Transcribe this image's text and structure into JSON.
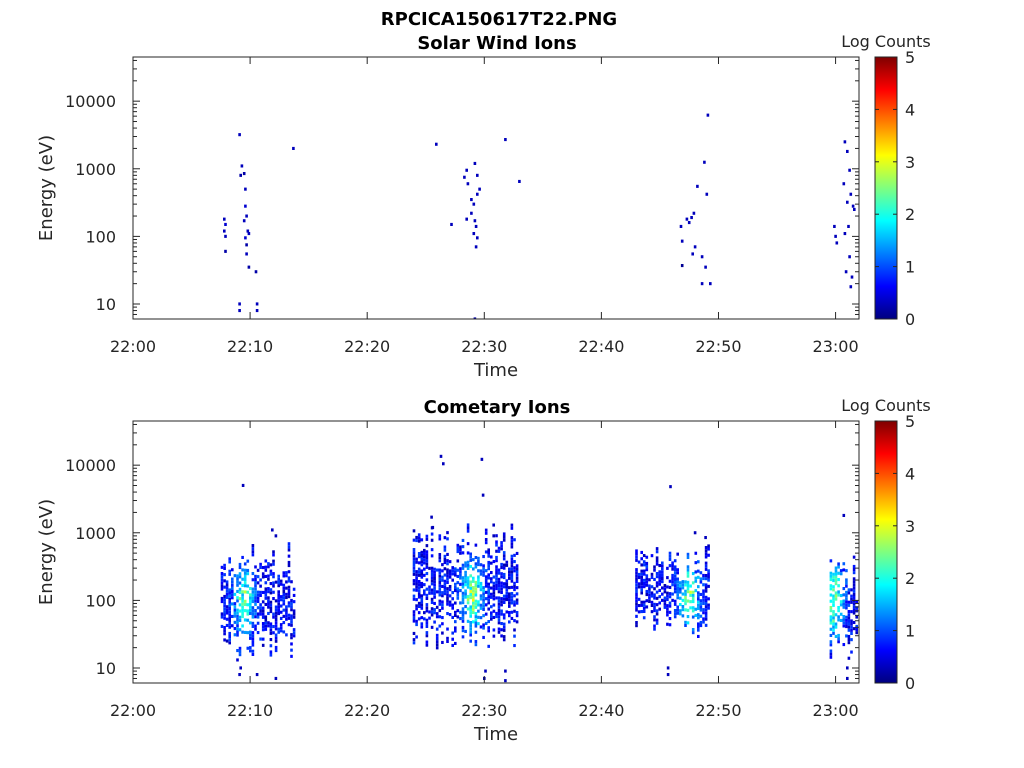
{
  "figure": {
    "title": "RPCICA150617T22.PNG"
  },
  "colors": {
    "scale": [
      "#00007f",
      "#0000ff",
      "#007fff",
      "#00ffff",
      "#7fff7f",
      "#ffff00",
      "#ff7f00",
      "#ff0000",
      "#7f0000"
    ],
    "axis": "#262626"
  },
  "chart_data": [
    {
      "type": "heatmap",
      "title": "Solar Wind Ions",
      "xlabel": "Time",
      "ylabel": "Energy (eV)",
      "yscale": "log",
      "xlim": [
        "22:00",
        "23:02"
      ],
      "ylim": [
        6,
        45000
      ],
      "xticks": [
        "22:00",
        "22:10",
        "22:20",
        "22:30",
        "22:40",
        "22:50",
        "23:00"
      ],
      "yticks": [
        "10",
        "100",
        "1000",
        "10000"
      ],
      "colorbar": {
        "label": "Log Counts",
        "min": 0,
        "max": 5,
        "ticks": [
          "0",
          "1",
          "2",
          "3",
          "4",
          "5"
        ]
      },
      "points": [
        [
          7.8,
          180,
          0.3
        ],
        [
          7.9,
          150,
          0.4
        ],
        [
          7.8,
          120,
          0.3
        ],
        [
          7.9,
          100,
          0.3
        ],
        [
          7.9,
          60,
          0.2
        ],
        [
          9.1,
          3200,
          0.3
        ],
        [
          9.3,
          1100,
          0.3
        ],
        [
          9.2,
          800,
          0.2
        ],
        [
          9.5,
          850,
          0.2
        ],
        [
          9.6,
          500,
          0.3
        ],
        [
          9.6,
          280,
          0.4
        ],
        [
          9.7,
          200,
          0.3
        ],
        [
          9.5,
          170,
          0.3
        ],
        [
          9.8,
          120,
          0.3
        ],
        [
          9.6,
          95,
          0.4
        ],
        [
          9.9,
          110,
          0.3
        ],
        [
          9.7,
          75,
          0.2
        ],
        [
          9.7,
          55,
          0.3
        ],
        [
          9.9,
          35,
          0.2
        ],
        [
          10.5,
          30,
          0.2
        ],
        [
          9.1,
          10,
          0.3
        ],
        [
          9.1,
          8,
          0.3
        ],
        [
          10.6,
          10,
          0.3
        ],
        [
          10.6,
          8,
          0.3
        ],
        [
          13.7,
          2000,
          0.3
        ],
        [
          25.9,
          2300,
          0.3
        ],
        [
          28.5,
          950,
          0.3
        ],
        [
          28.3,
          750,
          0.3
        ],
        [
          28.6,
          600,
          0.3
        ],
        [
          29.2,
          1200,
          0.3
        ],
        [
          29.4,
          800,
          0.3
        ],
        [
          29.6,
          500,
          0.3
        ],
        [
          29.4,
          420,
          0.3
        ],
        [
          28.9,
          350,
          0.3
        ],
        [
          29.1,
          300,
          0.3
        ],
        [
          28.5,
          180,
          0.3
        ],
        [
          28.9,
          220,
          0.3
        ],
        [
          29.2,
          170,
          0.3
        ],
        [
          29.3,
          140,
          0.3
        ],
        [
          27.2,
          150,
          0.3
        ],
        [
          29.4,
          95,
          0.3
        ],
        [
          29.3,
          70,
          0.3
        ],
        [
          29.1,
          110,
          0.3
        ],
        [
          31.8,
          2700,
          0.3
        ],
        [
          33.0,
          650,
          0.3
        ],
        [
          29.2,
          6,
          0.2
        ],
        [
          49.1,
          6200,
          0.3
        ],
        [
          48.8,
          1250,
          0.3
        ],
        [
          48.2,
          550,
          0.3
        ],
        [
          49.0,
          420,
          0.3
        ],
        [
          47.9,
          220,
          0.3
        ],
        [
          47.7,
          190,
          0.3
        ],
        [
          47.5,
          160,
          0.3
        ],
        [
          47.3,
          180,
          0.3
        ],
        [
          46.8,
          140,
          0.3
        ],
        [
          46.9,
          85,
          0.3
        ],
        [
          48.0,
          70,
          0.3
        ],
        [
          47.8,
          55,
          0.3
        ],
        [
          48.6,
          50,
          0.3
        ],
        [
          48.9,
          35,
          0.3
        ],
        [
          48.6,
          20,
          0.3
        ],
        [
          49.3,
          20,
          0.3
        ],
        [
          46.9,
          37,
          0.1
        ],
        [
          59.9,
          140,
          0.3
        ],
        [
          60.0,
          100,
          0.3
        ],
        [
          60.1,
          80,
          0.3
        ],
        [
          60.8,
          2500,
          0.3
        ],
        [
          61.0,
          1800,
          0.3
        ],
        [
          61.2,
          950,
          0.3
        ],
        [
          60.7,
          600,
          0.3
        ],
        [
          61.3,
          420,
          0.3
        ],
        [
          61.0,
          320,
          0.3
        ],
        [
          61.5,
          280,
          0.3
        ],
        [
          61.6,
          250,
          0.3
        ],
        [
          61.1,
          140,
          0.3
        ],
        [
          60.8,
          110,
          0.3
        ],
        [
          61.2,
          50,
          0.3
        ],
        [
          60.9,
          30,
          0.3
        ],
        [
          61.4,
          25,
          0.3
        ],
        [
          61.3,
          18,
          0.3
        ]
      ]
    },
    {
      "type": "heatmap",
      "title": "Cometary Ions",
      "xlabel": "Time",
      "ylabel": "Energy (eV)",
      "yscale": "log",
      "xlim": [
        "22:00",
        "23:02"
      ],
      "ylim": [
        6,
        45000
      ],
      "xticks": [
        "22:00",
        "22:10",
        "22:20",
        "22:30",
        "22:40",
        "22:50",
        "23:00"
      ],
      "yticks": [
        "10",
        "100",
        "1000",
        "10000"
      ],
      "colorbar": {
        "label": "Log Counts",
        "min": 0,
        "max": 5,
        "ticks": [
          "0",
          "1",
          "2",
          "3",
          "4",
          "5"
        ]
      },
      "clusters": [
        {
          "t": [
            7.6,
            13.9
          ],
          "e": [
            8,
            700
          ],
          "peak_t": 9.5,
          "peak_e": 100,
          "peak": 1.9,
          "density": 0.55
        },
        {
          "t": [
            24.0,
            32.9
          ],
          "e": [
            12,
            1500
          ],
          "peak_t": 29.0,
          "peak_e": 120,
          "peak": 2.2,
          "density": 0.55
        },
        {
          "t": [
            43.0,
            49.2
          ],
          "e": [
            18,
            700
          ],
          "peak_t": 47.5,
          "peak_e": 120,
          "peak": 2.0,
          "density": 0.55
        },
        {
          "t": [
            59.6,
            62.0
          ],
          "e": [
            8,
            600
          ],
          "peak_t": 59.9,
          "peak_e": 100,
          "peak": 2.1,
          "density": 0.6
        }
      ],
      "points": [
        [
          9.4,
          5000,
          0.3
        ],
        [
          26.3,
          13500,
          0.3
        ],
        [
          26.5,
          10500,
          0.3
        ],
        [
          29.8,
          12200,
          0.3
        ],
        [
          29.9,
          3600,
          0.3
        ],
        [
          45.9,
          4800,
          0.3
        ],
        [
          60.7,
          1800,
          0.3
        ],
        [
          25.5,
          1700,
          0.3
        ],
        [
          25.6,
          1200,
          0.3
        ],
        [
          30.8,
          1300,
          0.3
        ],
        [
          30.8,
          900,
          0.3
        ],
        [
          11.9,
          1100,
          0.3
        ],
        [
          12.2,
          900,
          0.3
        ],
        [
          48.0,
          1000,
          0.3
        ],
        [
          48.9,
          850,
          0.3
        ],
        [
          30.0,
          7,
          0.3
        ],
        [
          30.1,
          9,
          0.3
        ],
        [
          45.7,
          10,
          0.3
        ],
        [
          45.7,
          8,
          0.3
        ],
        [
          61.0,
          10,
          0.3
        ],
        [
          61.0,
          7,
          0.3
        ],
        [
          9.1,
          8,
          0.3
        ],
        [
          9.2,
          10,
          0.3
        ],
        [
          10.6,
          8,
          0.3
        ],
        [
          12.2,
          7,
          0.3
        ],
        [
          31.8,
          9,
          0.3
        ],
        [
          31.8,
          6.5,
          0.3
        ]
      ]
    }
  ]
}
